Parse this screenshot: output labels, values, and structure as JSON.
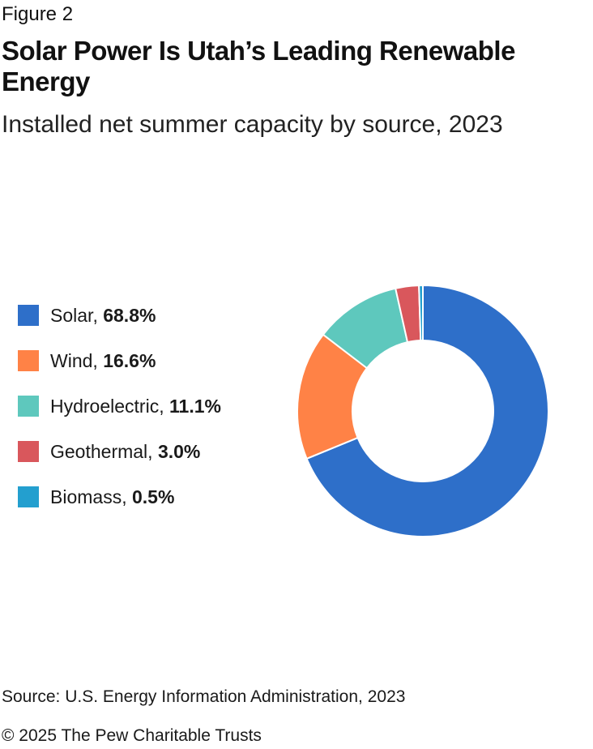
{
  "figure_label": "Figure 2",
  "title": "Solar Power Is Utah’s Leading Renewable Energy",
  "subtitle": "Installed net summer capacity by source, 2023",
  "source": "Source: U.S. Energy Information Administration, 2023",
  "copyright": "© 2025 The Pew Charitable Trusts",
  "chart_data": {
    "type": "pie",
    "variant": "donut",
    "title": "Solar Power Is Utah’s Leading Renewable Energy",
    "subtitle": "Installed net summer capacity by source, 2023",
    "legend_position": "left",
    "unit": "%",
    "slices": [
      {
        "name": "Solar",
        "value": 68.8,
        "label": "68.8%",
        "color": "#2e6fc9"
      },
      {
        "name": "Wind",
        "value": 16.6,
        "label": "16.6%",
        "color": "#ff8246"
      },
      {
        "name": "Hydroelectric",
        "value": 11.1,
        "label": "11.1%",
        "color": "#5ec8bd"
      },
      {
        "name": "Geothermal",
        "value": 3.0,
        "label": "3.0%",
        "color": "#d9575c"
      },
      {
        "name": "Biomass",
        "value": 0.5,
        "label": "0.5%",
        "color": "#239fcf"
      }
    ]
  }
}
